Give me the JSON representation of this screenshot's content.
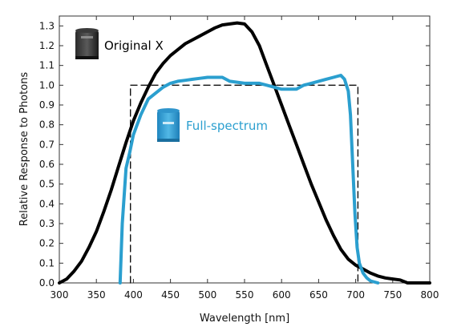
{
  "chart_data": {
    "type": "line",
    "title": "",
    "xlabel": "Wavelength [nm]",
    "ylabel": "Relative Response to Photons",
    "xlim": [
      300,
      800
    ],
    "ylim": [
      0,
      1.35
    ],
    "x_ticks": [
      300,
      350,
      400,
      450,
      500,
      550,
      600,
      650,
      700,
      750,
      800
    ],
    "y_ticks": [
      0.0,
      0.1,
      0.2,
      0.3,
      0.4,
      0.5,
      0.6,
      0.7,
      0.8,
      0.9,
      1.0,
      1.1,
      1.2,
      1.3
    ],
    "grid": false,
    "series": [
      {
        "name": "Original X",
        "color": "#000000",
        "icon": "black-sensor-icon",
        "points": [
          [
            300,
            0.0
          ],
          [
            310,
            0.02
          ],
          [
            320,
            0.06
          ],
          [
            330,
            0.11
          ],
          [
            340,
            0.18
          ],
          [
            350,
            0.26
          ],
          [
            360,
            0.36
          ],
          [
            370,
            0.47
          ],
          [
            380,
            0.59
          ],
          [
            390,
            0.71
          ],
          [
            400,
            0.82
          ],
          [
            410,
            0.91
          ],
          [
            420,
            0.99
          ],
          [
            430,
            1.06
          ],
          [
            440,
            1.11
          ],
          [
            450,
            1.15
          ],
          [
            460,
            1.18
          ],
          [
            470,
            1.21
          ],
          [
            480,
            1.23
          ],
          [
            490,
            1.25
          ],
          [
            500,
            1.27
          ],
          [
            510,
            1.29
          ],
          [
            520,
            1.305
          ],
          [
            530,
            1.31
          ],
          [
            540,
            1.315
          ],
          [
            550,
            1.31
          ],
          [
            560,
            1.27
          ],
          [
            570,
            1.2
          ],
          [
            580,
            1.1
          ],
          [
            590,
            1.0
          ],
          [
            600,
            0.9
          ],
          [
            610,
            0.8
          ],
          [
            620,
            0.7
          ],
          [
            630,
            0.6
          ],
          [
            640,
            0.5
          ],
          [
            650,
            0.41
          ],
          [
            660,
            0.32
          ],
          [
            670,
            0.24
          ],
          [
            680,
            0.17
          ],
          [
            690,
            0.12
          ],
          [
            700,
            0.09
          ],
          [
            710,
            0.07
          ],
          [
            720,
            0.05
          ],
          [
            730,
            0.035
          ],
          [
            740,
            0.025
          ],
          [
            750,
            0.02
          ],
          [
            760,
            0.015
          ],
          [
            770,
            0.0
          ],
          [
            780,
            0.0
          ],
          [
            790,
            0.0
          ],
          [
            800,
            0.0
          ]
        ]
      },
      {
        "name": "Full-spectrum",
        "color": "#2b9fcf",
        "icon": "blue-sensor-icon",
        "points": [
          [
            382,
            0.0
          ],
          [
            385,
            0.3
          ],
          [
            390,
            0.58
          ],
          [
            395,
            0.66
          ],
          [
            400,
            0.75
          ],
          [
            410,
            0.85
          ],
          [
            420,
            0.93
          ],
          [
            430,
            0.96
          ],
          [
            440,
            0.99
          ],
          [
            450,
            1.01
          ],
          [
            460,
            1.02
          ],
          [
            470,
            1.025
          ],
          [
            480,
            1.03
          ],
          [
            490,
            1.035
          ],
          [
            500,
            1.04
          ],
          [
            510,
            1.04
          ],
          [
            520,
            1.04
          ],
          [
            530,
            1.02
          ],
          [
            540,
            1.015
          ],
          [
            550,
            1.01
          ],
          [
            560,
            1.01
          ],
          [
            570,
            1.01
          ],
          [
            580,
            1.0
          ],
          [
            590,
            0.99
          ],
          [
            600,
            0.98
          ],
          [
            610,
            0.98
          ],
          [
            620,
            0.98
          ],
          [
            630,
            1.0
          ],
          [
            640,
            1.01
          ],
          [
            650,
            1.02
          ],
          [
            660,
            1.03
          ],
          [
            670,
            1.04
          ],
          [
            680,
            1.05
          ],
          [
            685,
            1.03
          ],
          [
            690,
            0.97
          ],
          [
            693,
            0.85
          ],
          [
            696,
            0.6
          ],
          [
            699,
            0.35
          ],
          [
            702,
            0.18
          ],
          [
            705,
            0.1
          ],
          [
            710,
            0.05
          ],
          [
            715,
            0.025
          ],
          [
            720,
            0.01
          ],
          [
            730,
            0.0
          ]
        ]
      },
      {
        "name": "",
        "style": "dashed",
        "color": "#111111",
        "points": [
          [
            396,
            0.0
          ],
          [
            396,
            1.0
          ],
          [
            703,
            1.0
          ],
          [
            703,
            0.0
          ]
        ]
      }
    ]
  }
}
